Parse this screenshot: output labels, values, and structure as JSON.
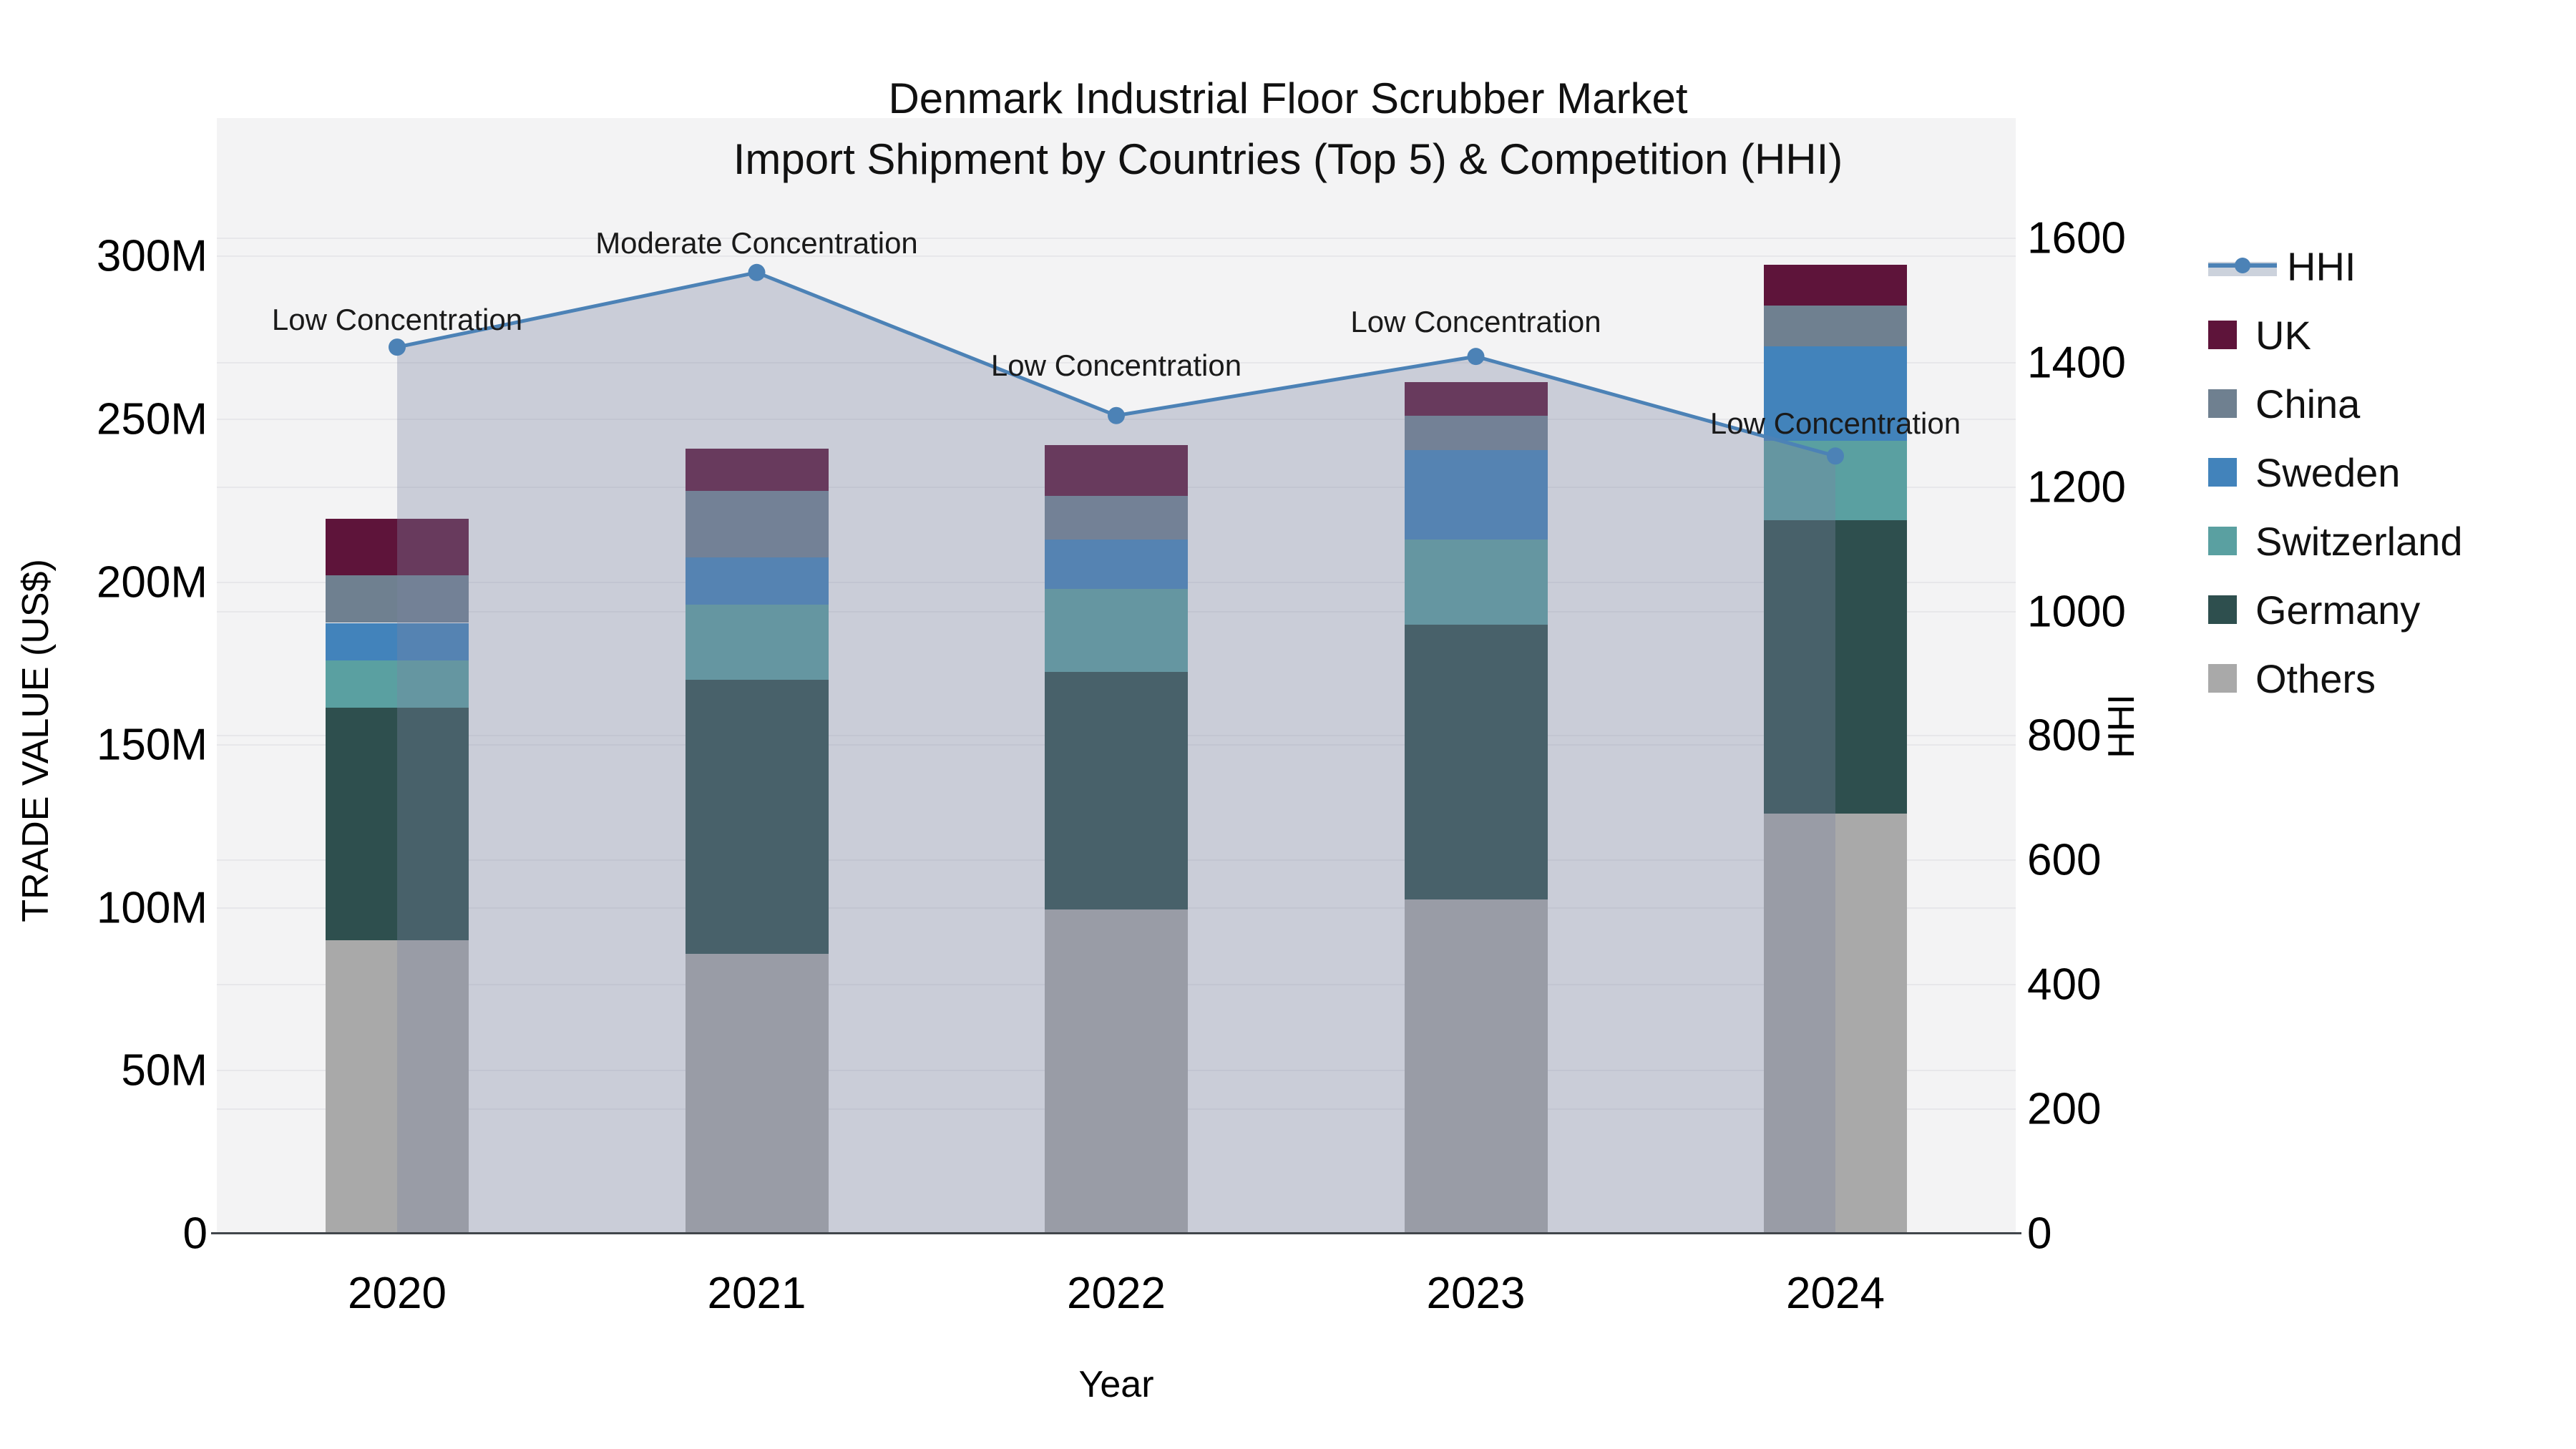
{
  "title": {
    "line1": "Denmark Industrial Floor Scrubber Market",
    "line2": "Import Shipment by Countries (Top 5) & Competition (HHI)"
  },
  "axes": {
    "left": {
      "title": "TRADE VALUE (US$)",
      "ticks": [
        {
          "label": "0",
          "value": 0
        },
        {
          "label": "50M",
          "value": 50
        },
        {
          "label": "100M",
          "value": 100
        },
        {
          "label": "150M",
          "value": 150
        },
        {
          "label": "200M",
          "value": 200
        },
        {
          "label": "250M",
          "value": 250
        },
        {
          "label": "300M",
          "value": 300
        }
      ]
    },
    "right": {
      "title": "HHI",
      "ticks": [
        {
          "label": "0",
          "value": 0
        },
        {
          "label": "200",
          "value": 200
        },
        {
          "label": "400",
          "value": 400
        },
        {
          "label": "600",
          "value": 600
        },
        {
          "label": "800",
          "value": 800
        },
        {
          "label": "1000",
          "value": 1000
        },
        {
          "label": "1200",
          "value": 1200
        },
        {
          "label": "1400",
          "value": 1400
        },
        {
          "label": "1600",
          "value": 1600
        }
      ]
    },
    "x": {
      "title": "Year"
    }
  },
  "chart_data": {
    "type": "stacked-bar+line",
    "unit": "Million US$",
    "categories": [
      "2020",
      "2021",
      "2022",
      "2023",
      "2024"
    ],
    "series": [
      {
        "name": "Others",
        "color": "#a9a9a9",
        "values": [
          90,
          86,
          99.5,
          102.5,
          129
        ]
      },
      {
        "name": "Germany",
        "color": "#2e4f4e",
        "values": [
          71.5,
          84,
          73,
          84.5,
          90
        ]
      },
      {
        "name": "Switzerland",
        "color": "#5aa0a1",
        "values": [
          14.5,
          23,
          25.5,
          26,
          24.5
        ]
      },
      {
        "name": "Sweden",
        "color": "#4283bb",
        "values": [
          11.5,
          14.5,
          15,
          27.5,
          29
        ]
      },
      {
        "name": "China",
        "color": "#6f8090",
        "values": [
          14.5,
          20.5,
          13.5,
          10.5,
          12.5
        ]
      },
      {
        "name": "UK",
        "color": "#5e143a",
        "values": [
          17.5,
          13,
          15.5,
          10.5,
          12.5
        ]
      }
    ],
    "bar_totals": [
      219.5,
      241,
      242,
      261.5,
      297.5
    ],
    "line_series": {
      "name": "HHI",
      "color": "#4c82b6",
      "area_color": "rgba(122,133,160,0.34)",
      "values": [
        1425,
        1545,
        1315,
        1410,
        1250
      ]
    },
    "annotations": [
      {
        "index": 0,
        "label": "Low Concentration"
      },
      {
        "index": 1,
        "label": "Moderate Concentration"
      },
      {
        "index": 2,
        "label": "Low Concentration"
      },
      {
        "index": 3,
        "label": "Low Concentration"
      },
      {
        "index": 4,
        "label": "Low Concentration"
      }
    ],
    "ylabel": "TRADE VALUE (US$)",
    "ylabel_right": "HHI",
    "xlabel": "Year",
    "ylim_left": [
      0,
      342
    ],
    "ylim_right": [
      0,
      1792
    ],
    "grid": true,
    "legend_position": "right"
  },
  "legend": {
    "items": [
      {
        "label": "HHI",
        "swatch": "line",
        "color": "#4c82b6"
      },
      {
        "label": "UK",
        "swatch": "square",
        "color": "#5e143a"
      },
      {
        "label": "China",
        "swatch": "square",
        "color": "#6f8090"
      },
      {
        "label": "Sweden",
        "swatch": "square",
        "color": "#4283bb"
      },
      {
        "label": "Switzerland",
        "swatch": "square",
        "color": "#5aa0a1"
      },
      {
        "label": "Germany",
        "swatch": "square",
        "color": "#2e4f4e"
      },
      {
        "label": "Others",
        "swatch": "square",
        "color": "#a9a9a9"
      }
    ]
  }
}
